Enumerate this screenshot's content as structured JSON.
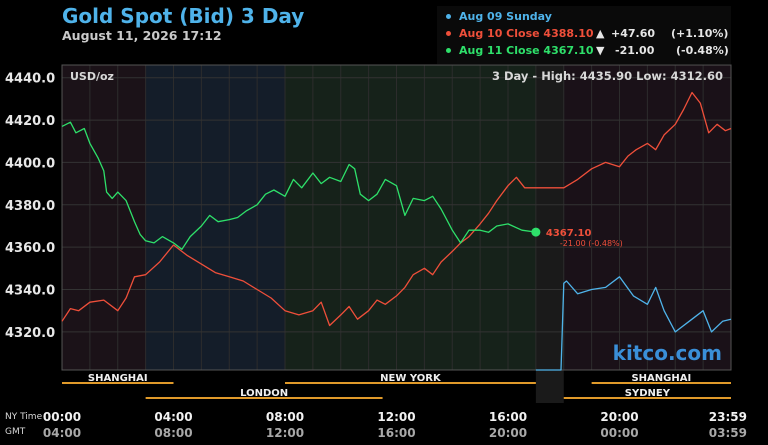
{
  "title": "Gold Spot (Bid) 3 Day",
  "datetime": "August 11, 2026 17:12",
  "legend": [
    {
      "label": "Aug 09 Sunday",
      "color": "#4fb3ea",
      "arrow": "",
      "change": "",
      "pct": ""
    },
    {
      "label": "Aug 10 Close 4388.10",
      "color": "#ef4f3a",
      "arrow": "▲",
      "change": "+47.60",
      "pct": "(+1.10%)"
    },
    {
      "label": "Aug 11 Close 4367.10",
      "color": "#2ee06a",
      "arrow": "▼",
      "change": "-21.00",
      "pct": "(-0.48%)"
    }
  ],
  "watermark": "kitco.com",
  "chart_data": {
    "type": "line",
    "unit_label": "USD/oz",
    "range_text": "3 Day - High: 4435.90  Low: 4312.60",
    "y_ticks": [
      "4320.0",
      "4340.0",
      "4360.0",
      "4380.0",
      "4400.0",
      "4420.0",
      "4440.0"
    ],
    "ylim": [
      4302,
      4446
    ],
    "x_ticks_ny": [
      "00:00",
      "04:00",
      "08:00",
      "12:00",
      "16:00",
      "20:00",
      "23:59"
    ],
    "x_ticks_gmt": [
      "04:00",
      "08:00",
      "12:00",
      "16:00",
      "20:00",
      "00:00",
      "03:59"
    ],
    "x_axis_labels": [
      "NY Time",
      "GMT"
    ],
    "sessions": [
      {
        "name": "SHANGHAI",
        "start": 0,
        "end": 4
      },
      {
        "name": "LONDON",
        "start": 3,
        "end": 11.5
      },
      {
        "name": "NEW YORK",
        "start": 8,
        "end": 17
      },
      {
        "name": "SYDNEY",
        "start": 18,
        "end": 24
      },
      {
        "name": "SHANGHAI",
        "start": 19,
        "end": 24
      }
    ],
    "current": {
      "value": "4367.10",
      "change": "-21.00 (-0.48%)"
    },
    "series": [
      {
        "name": "Aug 09 Sunday",
        "color": "#4fb3ea",
        "points": [
          [
            17,
            4302
          ],
          [
            17.9,
            4302
          ],
          [
            18,
            4343
          ],
          [
            18.1,
            4344
          ],
          [
            18.5,
            4338
          ],
          [
            19,
            4340
          ],
          [
            19.5,
            4341
          ],
          [
            20,
            4346
          ],
          [
            20.5,
            4337
          ],
          [
            21,
            4333
          ],
          [
            21.3,
            4341
          ],
          [
            21.6,
            4330
          ],
          [
            22,
            4320
          ],
          [
            22.5,
            4325
          ],
          [
            23,
            4330
          ],
          [
            23.3,
            4320
          ],
          [
            23.7,
            4325
          ],
          [
            24,
            4326
          ]
        ]
      },
      {
        "name": "Aug 10 Close 4388.10",
        "color": "#ef4f3a",
        "points": [
          [
            0,
            4325
          ],
          [
            0.3,
            4331
          ],
          [
            0.6,
            4330
          ],
          [
            1,
            4334
          ],
          [
            1.5,
            4335
          ],
          [
            2,
            4330
          ],
          [
            2.3,
            4336
          ],
          [
            2.6,
            4346
          ],
          [
            3,
            4347
          ],
          [
            3.5,
            4353
          ],
          [
            4,
            4361
          ],
          [
            4.5,
            4356
          ],
          [
            5,
            4352
          ],
          [
            5.5,
            4348
          ],
          [
            6,
            4346
          ],
          [
            6.5,
            4344
          ],
          [
            7,
            4340
          ],
          [
            7.5,
            4336
          ],
          [
            8,
            4330
          ],
          [
            8.5,
            4328
          ],
          [
            9,
            4330
          ],
          [
            9.3,
            4334
          ],
          [
            9.6,
            4323
          ],
          [
            10,
            4328
          ],
          [
            10.3,
            4332
          ],
          [
            10.6,
            4326
          ],
          [
            11,
            4330
          ],
          [
            11.3,
            4335
          ],
          [
            11.6,
            4333
          ],
          [
            12,
            4337
          ],
          [
            12.3,
            4341
          ],
          [
            12.6,
            4347
          ],
          [
            13,
            4350
          ],
          [
            13.3,
            4347
          ],
          [
            13.6,
            4353
          ],
          [
            14,
            4358
          ],
          [
            14.3,
            4362
          ],
          [
            14.6,
            4365
          ],
          [
            15,
            4371
          ],
          [
            15.3,
            4376
          ],
          [
            15.6,
            4382
          ],
          [
            16,
            4389
          ],
          [
            16.3,
            4393
          ],
          [
            16.6,
            4388
          ],
          [
            17,
            4388
          ],
          [
            17.9,
            4388
          ],
          [
            18,
            4388
          ],
          [
            18.5,
            4392
          ],
          [
            19,
            4397
          ],
          [
            19.5,
            4400
          ],
          [
            20,
            4398
          ],
          [
            20.3,
            4403
          ],
          [
            20.6,
            4406
          ],
          [
            21,
            4409
          ],
          [
            21.3,
            4406
          ],
          [
            21.6,
            4413
          ],
          [
            22,
            4418
          ],
          [
            22.3,
            4425
          ],
          [
            22.6,
            4433
          ],
          [
            22.9,
            4428
          ],
          [
            23.2,
            4414
          ],
          [
            23.5,
            4418
          ],
          [
            23.8,
            4415
          ],
          [
            24,
            4416
          ]
        ]
      },
      {
        "name": "Aug 11 Close 4367.10",
        "color": "#2ee06a",
        "points": [
          [
            0,
            4417
          ],
          [
            0.3,
            4419
          ],
          [
            0.5,
            4414
          ],
          [
            0.8,
            4416
          ],
          [
            1,
            4409
          ],
          [
            1.3,
            4402
          ],
          [
            1.5,
            4396
          ],
          [
            1.6,
            4386
          ],
          [
            1.8,
            4383
          ],
          [
            2,
            4386
          ],
          [
            2.3,
            4382
          ],
          [
            2.6,
            4372
          ],
          [
            2.8,
            4366
          ],
          [
            3,
            4363
          ],
          [
            3.3,
            4362
          ],
          [
            3.6,
            4365
          ],
          [
            4,
            4362
          ],
          [
            4.3,
            4359
          ],
          [
            4.6,
            4365
          ],
          [
            5,
            4370
          ],
          [
            5.3,
            4375
          ],
          [
            5.6,
            4372
          ],
          [
            6,
            4373
          ],
          [
            6.3,
            4374
          ],
          [
            6.6,
            4377
          ],
          [
            7,
            4380
          ],
          [
            7.3,
            4385
          ],
          [
            7.6,
            4387
          ],
          [
            8,
            4384
          ],
          [
            8.3,
            4392
          ],
          [
            8.6,
            4388
          ],
          [
            9,
            4395
          ],
          [
            9.3,
            4390
          ],
          [
            9.6,
            4393
          ],
          [
            10,
            4391
          ],
          [
            10.3,
            4399
          ],
          [
            10.5,
            4397
          ],
          [
            10.7,
            4385
          ],
          [
            11,
            4382
          ],
          [
            11.3,
            4385
          ],
          [
            11.6,
            4392
          ],
          [
            12,
            4389
          ],
          [
            12.3,
            4375
          ],
          [
            12.6,
            4383
          ],
          [
            13,
            4382
          ],
          [
            13.3,
            4384
          ],
          [
            13.6,
            4378
          ],
          [
            14,
            4368
          ],
          [
            14.3,
            4362
          ],
          [
            14.6,
            4368
          ],
          [
            15,
            4368
          ],
          [
            15.3,
            4367
          ],
          [
            15.6,
            4370
          ],
          [
            16,
            4371
          ],
          [
            16.5,
            4368
          ],
          [
            17,
            4367.1
          ]
        ]
      }
    ]
  }
}
